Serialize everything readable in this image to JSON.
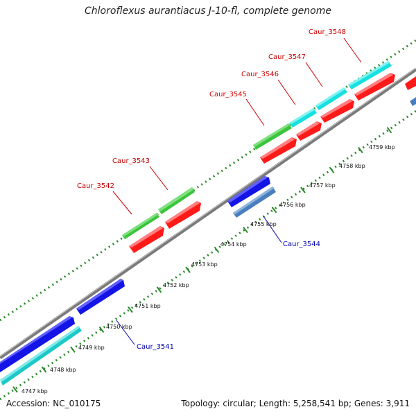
{
  "title": "Chloroflexus aurantiacus J-10-fl, complete genome",
  "footer": {
    "accession": "Accession: NC_010175",
    "summary": "Topology: circular; Length: 5,258,541 bp; Genes: 3,911"
  },
  "colors": {
    "backbone": "#8e8e8e",
    "tick": "#2a8a2a",
    "gene_green": "#3cc43c",
    "gene_red": "#ff1a1a",
    "gene_cyan": "#16e0e0",
    "gene_blue": "#1414e6",
    "gene_steelblue": "#4a7fbf",
    "gene_teal": "#1cc8c8",
    "label_forward": "#cc0000",
    "label_reverse": "#0000b0"
  },
  "scale_ticks": [
    "4747 kbp",
    "4748 kbp",
    "4749 kbp",
    "4750 kbp",
    "4751 kbp",
    "4752 kbp",
    "4753 kbp",
    "4754 kbp",
    "4755 kbp",
    "4756 kbp",
    "4757 kbp",
    "4758 kbp",
    "4759 kbp"
  ],
  "gene_labels": [
    {
      "name": "Caur_3542",
      "strand": "forward"
    },
    {
      "name": "Caur_3543",
      "strand": "forward"
    },
    {
      "name": "Caur_3545",
      "strand": "forward"
    },
    {
      "name": "Caur_3546",
      "strand": "forward"
    },
    {
      "name": "Caur_3547",
      "strand": "forward"
    },
    {
      "name": "Caur_3548",
      "strand": "forward"
    },
    {
      "name": "Caur_3541",
      "strand": "reverse"
    },
    {
      "name": "Caur_3544",
      "strand": "reverse"
    }
  ]
}
